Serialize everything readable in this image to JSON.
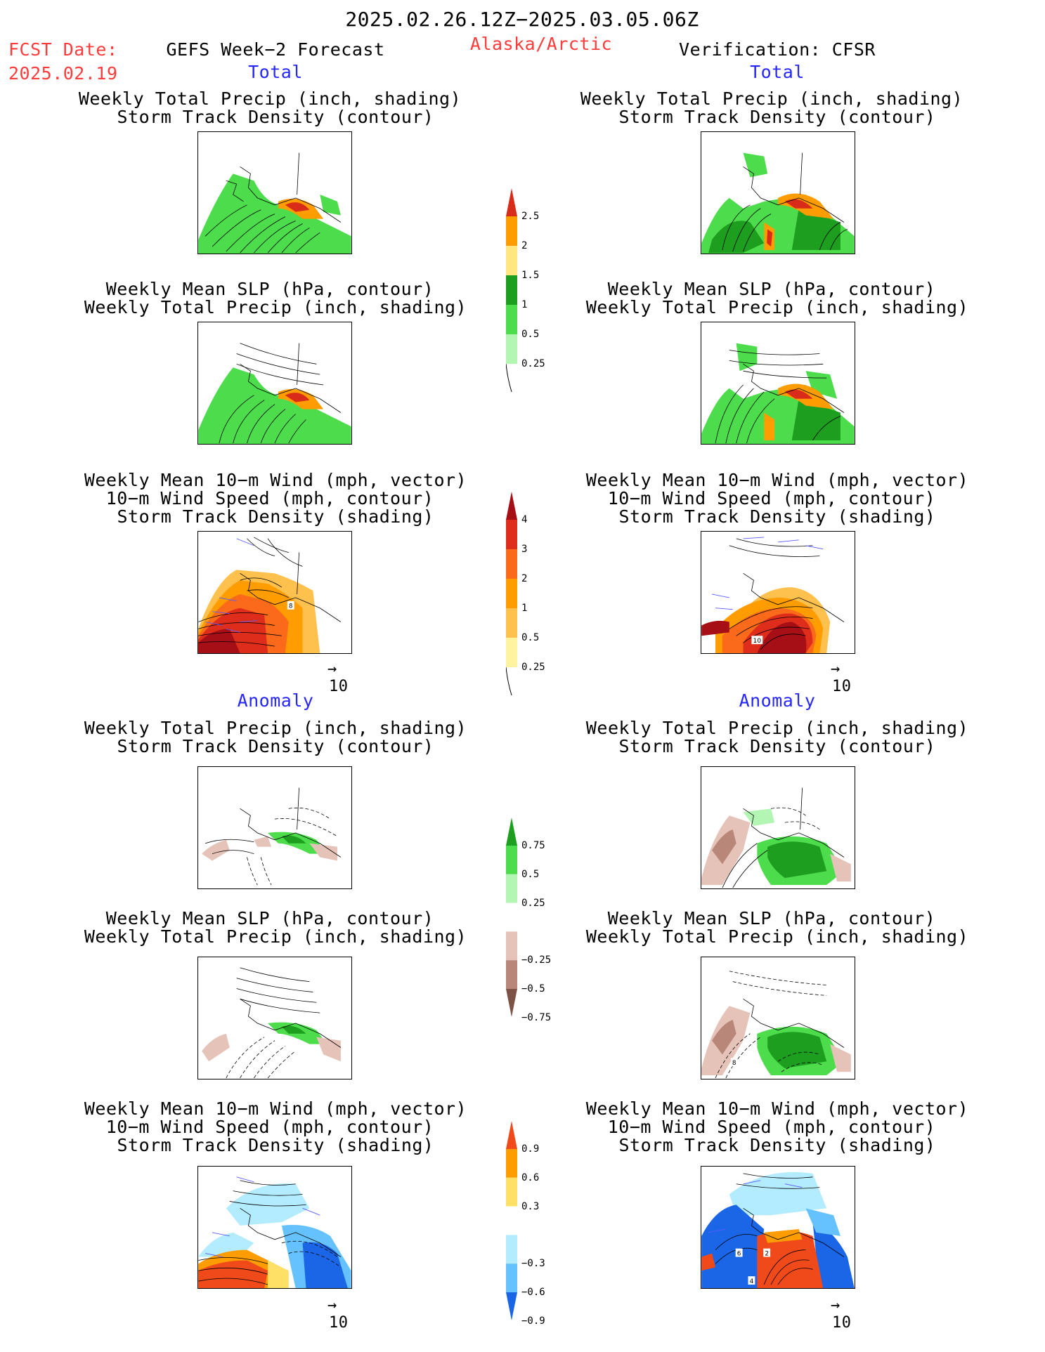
{
  "header": {
    "date_range": "2025.02.26.12Z−2025.03.05.06Z",
    "fcst_label": "FCST Date:",
    "fcst_date": "2025.02.19",
    "left_title": "GEFS Week−2 Forecast",
    "region": "Alaska/Arctic",
    "right_title": "Verification: CFSR"
  },
  "sections": {
    "total": "Total",
    "anomaly": "Anomaly"
  },
  "panel_titles": {
    "precip_storm": [
      "Weekly Total Precip (inch, shading)",
      "Storm Track Density (contour)"
    ],
    "slp_precip": [
      "Weekly Mean SLP (hPa, contour)",
      "Weekly Total Precip (inch, shading)"
    ],
    "wind_storm": [
      "Weekly Mean 10−m Wind (mph, vector)",
      "10−m Wind Speed (mph, contour)",
      "Storm Track Density (shading)"
    ]
  },
  "vector_ref": "10",
  "map_labels": {
    "fc_wind_total": "8",
    "vf_wind_total": "10",
    "vf_slp_anom": "8",
    "vf_wind_anom_a": "6",
    "vf_wind_anom_b": "2",
    "vf_wind_anom_c": "4"
  },
  "colorbars": {
    "precip_total": {
      "labels": [
        "2.5",
        "2",
        "1.5",
        "1",
        "0.5",
        "0.25"
      ],
      "colors": [
        "#d92b1a",
        "#ff9d00",
        "#ffe680",
        "#1e9e1e",
        "#4cdc4c",
        "#b3f5b3"
      ]
    },
    "storm_total": {
      "labels": [
        "4",
        "3",
        "2",
        "1",
        "0.5",
        "0.25"
      ],
      "colors": [
        "#a50f15",
        "#de2d1a",
        "#fb6a1a",
        "#ff9d00",
        "#ffc14d",
        "#fff3a0"
      ]
    },
    "precip_anom": {
      "labels": [
        "0.75",
        "0.5",
        "0.25",
        "−0.25",
        "−0.5",
        "−0.75"
      ],
      "colors": [
        "#1e9e1e",
        "#4cdc4c",
        "#b3f5b3",
        "#ffffff",
        "#e6c3b8",
        "#b8877a",
        "#7d5247"
      ]
    },
    "storm_anom": {
      "labels": [
        "0.9",
        "0.6",
        "0.3",
        "−0.3",
        "−0.6",
        "−0.9"
      ],
      "colors": [
        "#f04a1a",
        "#ff9d00",
        "#ffe066",
        "#ffffff",
        "#b3ecff",
        "#66c2ff",
        "#1a66e6"
      ]
    }
  }
}
